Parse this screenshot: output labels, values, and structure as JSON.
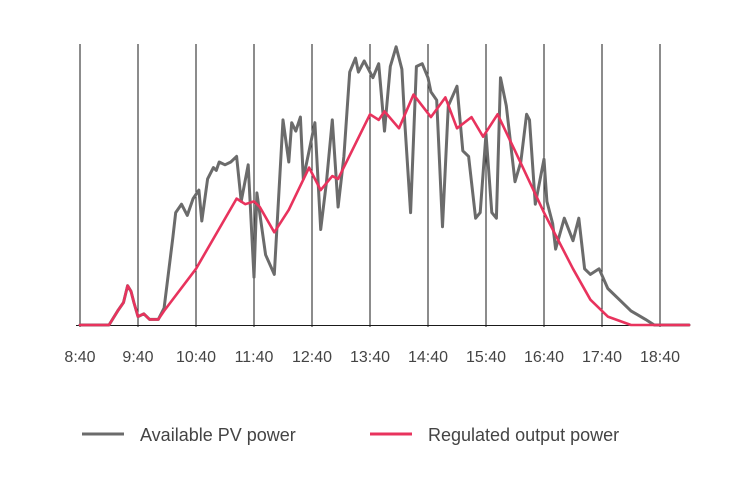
{
  "chart_data": {
    "type": "line",
    "title": "",
    "xlabel": "",
    "ylabel": "",
    "x_tick_labels": [
      "8:40",
      "9:40",
      "10:40",
      "11:40",
      "12:40",
      "13:40",
      "14:40",
      "15:40",
      "16:40",
      "17:40",
      "18:40"
    ],
    "xlim": [
      0,
      10.5
    ],
    "ylim": [
      0,
      100
    ],
    "grid": "vertical",
    "legend_position": "bottom",
    "series": [
      {
        "name": "Available PV power",
        "color": "#6b6b6b",
        "points": [
          [
            0,
            0
          ],
          [
            0.5,
            0
          ],
          [
            0.65,
            5
          ],
          [
            0.75,
            8
          ],
          [
            0.82,
            14
          ],
          [
            0.88,
            12
          ],
          [
            0.93,
            8
          ],
          [
            1.0,
            3
          ],
          [
            1.1,
            4
          ],
          [
            1.2,
            2
          ],
          [
            1.35,
            2
          ],
          [
            1.45,
            6
          ],
          [
            1.6,
            31
          ],
          [
            1.65,
            40
          ],
          [
            1.75,
            43
          ],
          [
            1.85,
            39
          ],
          [
            1.95,
            45
          ],
          [
            2.05,
            48
          ],
          [
            2.1,
            37
          ],
          [
            2.2,
            52
          ],
          [
            2.3,
            56
          ],
          [
            2.35,
            55
          ],
          [
            2.4,
            58
          ],
          [
            2.5,
            57
          ],
          [
            2.6,
            58
          ],
          [
            2.7,
            60
          ],
          [
            2.78,
            44
          ],
          [
            2.9,
            57
          ],
          [
            3.0,
            17
          ],
          [
            3.05,
            47
          ],
          [
            3.2,
            25
          ],
          [
            3.35,
            18
          ],
          [
            3.5,
            73
          ],
          [
            3.6,
            58
          ],
          [
            3.65,
            72
          ],
          [
            3.72,
            69
          ],
          [
            3.8,
            74
          ],
          [
            3.85,
            52
          ],
          [
            3.95,
            62
          ],
          [
            4.05,
            72
          ],
          [
            4.15,
            34
          ],
          [
            4.25,
            51
          ],
          [
            4.35,
            73
          ],
          [
            4.45,
            42
          ],
          [
            4.55,
            60
          ],
          [
            4.65,
            90
          ],
          [
            4.75,
            95
          ],
          [
            4.8,
            90
          ],
          [
            4.9,
            94
          ],
          [
            5.05,
            88
          ],
          [
            5.15,
            93
          ],
          [
            5.25,
            69
          ],
          [
            5.35,
            92
          ],
          [
            5.45,
            99
          ],
          [
            5.55,
            91
          ],
          [
            5.6,
            72
          ],
          [
            5.7,
            40
          ],
          [
            5.8,
            92
          ],
          [
            5.9,
            93
          ],
          [
            6.0,
            88
          ],
          [
            6.05,
            83
          ],
          [
            6.15,
            80
          ],
          [
            6.25,
            35
          ],
          [
            6.35,
            78
          ],
          [
            6.5,
            85
          ],
          [
            6.6,
            62
          ],
          [
            6.7,
            60
          ],
          [
            6.82,
            38
          ],
          [
            6.9,
            40
          ],
          [
            7.0,
            68
          ],
          [
            7.1,
            40
          ],
          [
            7.18,
            38
          ],
          [
            7.25,
            88
          ],
          [
            7.35,
            78
          ],
          [
            7.5,
            51
          ],
          [
            7.6,
            58
          ],
          [
            7.7,
            75
          ],
          [
            7.75,
            73
          ],
          [
            7.85,
            43
          ],
          [
            8.0,
            59
          ],
          [
            8.05,
            44
          ],
          [
            8.15,
            36
          ],
          [
            8.2,
            27
          ],
          [
            8.35,
            38
          ],
          [
            8.5,
            30
          ],
          [
            8.6,
            38
          ],
          [
            8.7,
            20
          ],
          [
            8.8,
            18
          ],
          [
            8.95,
            20
          ],
          [
            9.1,
            13
          ],
          [
            9.3,
            9
          ],
          [
            9.5,
            5
          ],
          [
            9.75,
            2
          ],
          [
            9.9,
            0
          ],
          [
            10.5,
            0
          ]
        ]
      },
      {
        "name": "Regulated output power",
        "color": "#e8335d",
        "points": [
          [
            0,
            0
          ],
          [
            0.5,
            0
          ],
          [
            0.65,
            5
          ],
          [
            0.75,
            8
          ],
          [
            0.82,
            14
          ],
          [
            0.88,
            12
          ],
          [
            0.93,
            8
          ],
          [
            1.0,
            3
          ],
          [
            1.1,
            4
          ],
          [
            1.2,
            2
          ],
          [
            1.35,
            2
          ],
          [
            1.45,
            5
          ],
          [
            2.0,
            20
          ],
          [
            2.7,
            45
          ],
          [
            2.85,
            43
          ],
          [
            3.0,
            44
          ],
          [
            3.1,
            42
          ],
          [
            3.35,
            33
          ],
          [
            3.6,
            41
          ],
          [
            3.95,
            56
          ],
          [
            4.15,
            48
          ],
          [
            4.35,
            53
          ],
          [
            4.45,
            52
          ],
          [
            5.0,
            75
          ],
          [
            5.15,
            73
          ],
          [
            5.25,
            76
          ],
          [
            5.5,
            70
          ],
          [
            5.75,
            82
          ],
          [
            6.05,
            74
          ],
          [
            6.3,
            81
          ],
          [
            6.5,
            70
          ],
          [
            6.75,
            74
          ],
          [
            6.95,
            67
          ],
          [
            7.2,
            75
          ],
          [
            7.5,
            62
          ],
          [
            8.0,
            40
          ],
          [
            8.5,
            20
          ],
          [
            8.8,
            9
          ],
          [
            9.1,
            3
          ],
          [
            9.5,
            0
          ],
          [
            10.5,
            0
          ]
        ]
      }
    ]
  }
}
